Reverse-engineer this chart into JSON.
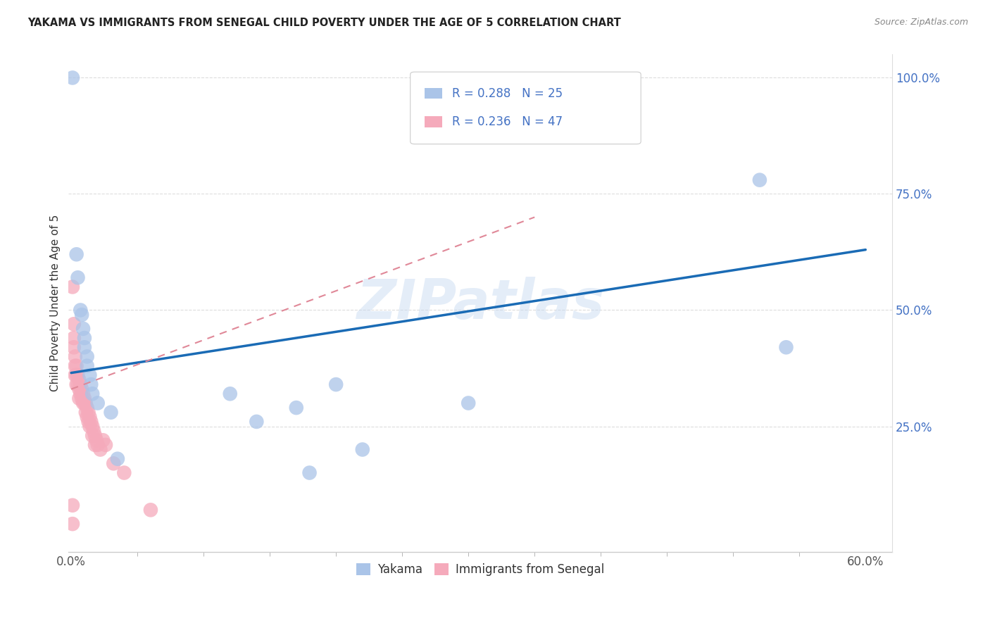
{
  "title": "YAKAMA VS IMMIGRANTS FROM SENEGAL CHILD POVERTY UNDER THE AGE OF 5 CORRELATION CHART",
  "source": "Source: ZipAtlas.com",
  "ylabel": "Child Poverty Under the Age of 5",
  "xlim": [
    -0.002,
    0.62
  ],
  "ylim": [
    -0.02,
    1.05
  ],
  "xtick_vals": [
    0.0,
    0.6
  ],
  "xticklabels": [
    "0.0%",
    "60.0%"
  ],
  "yticks_right": [
    0.25,
    0.5,
    0.75,
    1.0
  ],
  "ytick_right_labels": [
    "25.0%",
    "50.0%",
    "75.0%",
    "100.0%"
  ],
  "legend_entry1_r": "R = 0.288",
  "legend_entry1_n": "N = 25",
  "legend_entry2_r": "R = 0.236",
  "legend_entry2_n": "N = 47",
  "legend_bottom1": "Yakama",
  "legend_bottom2": "Immigrants from Senegal",
  "yakama_color": "#aac4e8",
  "senegal_color": "#f5aabb",
  "trendline_blue": "#1a6bb5",
  "trendline_pink": "#e08898",
  "watermark": "ZIPatlas",
  "yakama_points": [
    [
      0.001,
      1.0
    ],
    [
      0.004,
      0.62
    ],
    [
      0.005,
      0.57
    ],
    [
      0.007,
      0.5
    ],
    [
      0.008,
      0.49
    ],
    [
      0.009,
      0.46
    ],
    [
      0.01,
      0.44
    ],
    [
      0.01,
      0.42
    ],
    [
      0.012,
      0.4
    ],
    [
      0.012,
      0.38
    ],
    [
      0.014,
      0.36
    ],
    [
      0.015,
      0.34
    ],
    [
      0.016,
      0.32
    ],
    [
      0.02,
      0.3
    ],
    [
      0.03,
      0.28
    ],
    [
      0.035,
      0.18
    ],
    [
      0.12,
      0.32
    ],
    [
      0.14,
      0.26
    ],
    [
      0.17,
      0.29
    ],
    [
      0.2,
      0.34
    ],
    [
      0.22,
      0.2
    ],
    [
      0.3,
      0.3
    ],
    [
      0.52,
      0.78
    ],
    [
      0.54,
      0.42
    ],
    [
      0.18,
      0.15
    ]
  ],
  "senegal_points": [
    [
      0.001,
      0.04
    ],
    [
      0.001,
      0.08
    ],
    [
      0.001,
      0.55
    ],
    [
      0.002,
      0.47
    ],
    [
      0.002,
      0.44
    ],
    [
      0.002,
      0.42
    ],
    [
      0.003,
      0.4
    ],
    [
      0.003,
      0.38
    ],
    [
      0.003,
      0.36
    ],
    [
      0.004,
      0.38
    ],
    [
      0.004,
      0.36
    ],
    [
      0.004,
      0.34
    ],
    [
      0.005,
      0.36
    ],
    [
      0.005,
      0.34
    ],
    [
      0.006,
      0.35
    ],
    [
      0.006,
      0.33
    ],
    [
      0.006,
      0.31
    ],
    [
      0.007,
      0.34
    ],
    [
      0.007,
      0.32
    ],
    [
      0.008,
      0.33
    ],
    [
      0.008,
      0.31
    ],
    [
      0.009,
      0.32
    ],
    [
      0.009,
      0.3
    ],
    [
      0.01,
      0.31
    ],
    [
      0.01,
      0.3
    ],
    [
      0.011,
      0.3
    ],
    [
      0.011,
      0.28
    ],
    [
      0.012,
      0.29
    ],
    [
      0.012,
      0.27
    ],
    [
      0.013,
      0.28
    ],
    [
      0.013,
      0.26
    ],
    [
      0.014,
      0.27
    ],
    [
      0.014,
      0.25
    ],
    [
      0.015,
      0.26
    ],
    [
      0.016,
      0.25
    ],
    [
      0.016,
      0.23
    ],
    [
      0.017,
      0.24
    ],
    [
      0.018,
      0.23
    ],
    [
      0.018,
      0.21
    ],
    [
      0.019,
      0.22
    ],
    [
      0.02,
      0.21
    ],
    [
      0.022,
      0.2
    ],
    [
      0.024,
      0.22
    ],
    [
      0.026,
      0.21
    ],
    [
      0.032,
      0.17
    ],
    [
      0.04,
      0.15
    ],
    [
      0.06,
      0.07
    ]
  ],
  "blue_line_x0": 0.0,
  "blue_line_y0": 0.365,
  "blue_line_x1": 0.6,
  "blue_line_y1": 0.63,
  "pink_line_x0": 0.0,
  "pink_line_y0": 0.33,
  "pink_line_x1": 0.35,
  "pink_line_y1": 0.7,
  "figsize": [
    14.06,
    8.92
  ],
  "dpi": 100
}
